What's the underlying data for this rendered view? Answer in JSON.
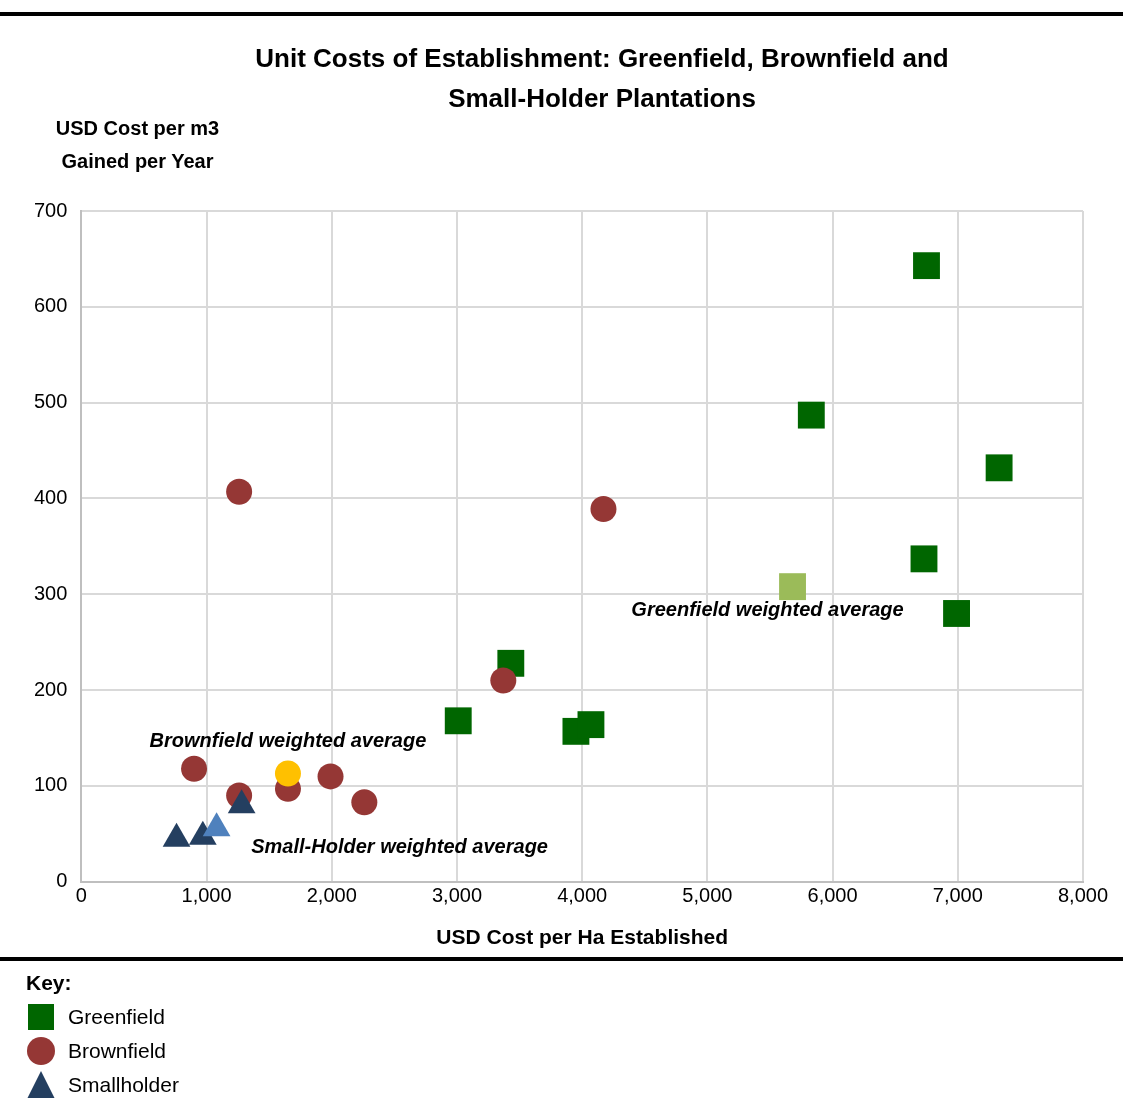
{
  "chart_data": {
    "type": "scatter",
    "title": "Unit Costs of Establishment: Greenfield, Brownfield and Small-Holder Plantations",
    "xlabel": "USD Cost per Ha Established",
    "ylabel": "USD Cost per m3 Gained per Year",
    "legend_title": "Key:",
    "legend": "bottom left",
    "grid": true,
    "xlim": [
      0,
      8000
    ],
    "xticks": [
      {
        "value": 0,
        "label": "0"
      },
      {
        "value": 1000,
        "label": "1,000"
      },
      {
        "value": 2000,
        "label": "2,000"
      },
      {
        "value": 3000,
        "label": "3,000"
      },
      {
        "value": 4000,
        "label": "4,000"
      },
      {
        "value": 5000,
        "label": "5,000"
      },
      {
        "value": 6000,
        "label": "6,000"
      },
      {
        "value": 7000,
        "label": "7,000"
      },
      {
        "value": 8000,
        "label": "8,000"
      }
    ],
    "ylim": [
      0,
      700
    ],
    "yticks": [
      0,
      100,
      200,
      300,
      400,
      500,
      600,
      700
    ],
    "series": [
      {
        "name": "Greenfield",
        "color": "#006600",
        "marker": "square",
        "x": [
          6750,
          5830,
          7330,
          6730,
          6990,
          3430,
          3010,
          3950,
          4070
        ],
        "values": [
          643,
          487,
          432,
          337,
          280,
          228,
          168,
          157,
          164
        ]
      },
      {
        "name": "Brownfield",
        "color": "#953735",
        "marker": "circle",
        "x": [
          1260,
          4170,
          3370,
          900,
          1260,
          1650,
          1990,
          2260
        ],
        "values": [
          407,
          389,
          210,
          118,
          90,
          97,
          110,
          83
        ]
      },
      {
        "name": "Smallholder",
        "color": "#243f60",
        "marker": "triangle",
        "x": [
          760,
          970,
          1280
        ],
        "values": [
          45,
          47,
          80
        ]
      },
      {
        "color": "#9bbb59",
        "marker": "square",
        "x": [
          5680
        ],
        "values": [
          308
        ]
      },
      {
        "color": "#ffc000",
        "marker": "circle",
        "x": [
          1650
        ],
        "values": [
          113
        ]
      },
      {
        "color": "#4f81bd",
        "marker": "triangle",
        "x": [
          1080
        ],
        "values": [
          56
        ]
      }
    ],
    "annotations": [
      {
        "text": "Greenfield weighted average",
        "x": 5680,
        "y": 308
      },
      {
        "text": "Brownfield weighted average",
        "x": 1650,
        "y": 113
      },
      {
        "text": "Small-Holder weighted average",
        "x": 1080,
        "y": 56
      }
    ]
  }
}
